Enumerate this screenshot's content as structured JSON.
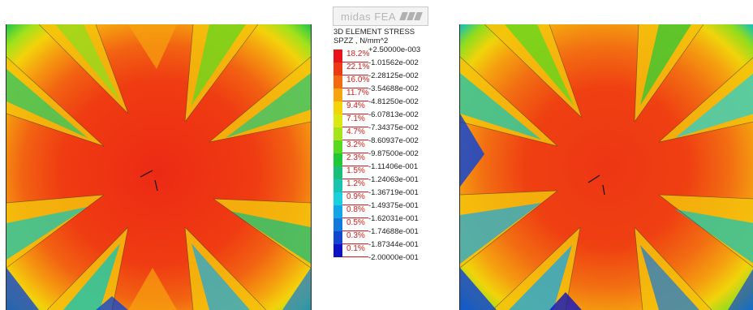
{
  "brand": {
    "name": "midas FEA"
  },
  "legend": {
    "title_line1": "3D ELEMENT STRESS",
    "title_line2": "SPZZ , N/mm^2",
    "values": [
      "+2.50000e-003",
      "-1.01562e-002",
      "-2.28125e-002",
      "-3.54688e-002",
      "-4.81250e-002",
      "-6.07813e-002",
      "-7.34375e-002",
      "-8.60937e-002",
      "-9.87500e-002",
      "-1.11406e-001",
      "-1.24063e-001",
      "-1.36719e-001",
      "-1.49375e-001",
      "-1.62031e-001",
      "-1.74688e-001",
      "-1.87344e-001",
      "-2.00000e-001"
    ],
    "percents": [
      "18.2%",
      "22.1%",
      "16.0%",
      "11.7%",
      "9.4%",
      "7.1%",
      "4.7%",
      "3.2%",
      "2.3%",
      "1.5%",
      "1.2%",
      "0.9%",
      "0.8%",
      "0.5%",
      "0.3%",
      "0.1%"
    ],
    "colors": [
      "#e8141a",
      "#ee3a12",
      "#f46a12",
      "#f7a40e",
      "#f4d409",
      "#dce814",
      "#a6e41c",
      "#58d81f",
      "#20c838",
      "#19be78",
      "#18c4b0",
      "#1ad0dc",
      "#13a6e6",
      "#1278dc",
      "#1246d0",
      "#0d13c4"
    ]
  },
  "views": [
    {
      "name": "stress-contour-left"
    },
    {
      "name": "stress-contour-right"
    }
  ]
}
